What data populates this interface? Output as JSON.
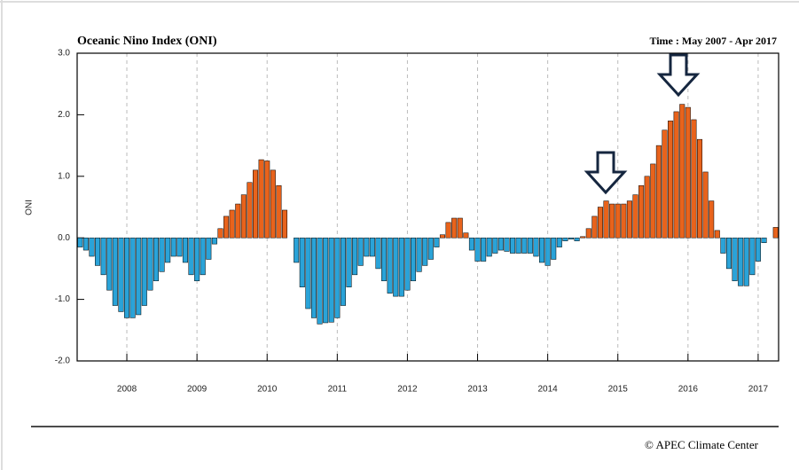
{
  "chart_data": {
    "type": "bar",
    "title": "Oceanic Nino Index (ONI)",
    "subtitle": "Time : May 2007 - Apr 2017",
    "y_label": "ONI",
    "footer": "© APEC Climate Center",
    "categories": [
      null,
      null,
      null,
      null,
      null,
      null,
      null,
      null,
      "2008",
      null,
      null,
      null,
      null,
      null,
      null,
      null,
      null,
      null,
      null,
      null,
      "2009",
      null,
      null,
      null,
      null,
      null,
      null,
      null,
      null,
      null,
      null,
      null,
      "2010",
      null,
      null,
      null,
      null,
      null,
      null,
      null,
      null,
      null,
      null,
      null,
      "2011",
      null,
      null,
      null,
      null,
      null,
      null,
      null,
      null,
      null,
      null,
      null,
      "2012",
      null,
      null,
      null,
      null,
      null,
      null,
      null,
      null,
      null,
      null,
      null,
      "2013",
      null,
      null,
      null,
      null,
      null,
      null,
      null,
      null,
      null,
      null,
      null,
      "2014",
      null,
      null,
      null,
      null,
      null,
      null,
      null,
      null,
      null,
      null,
      null,
      "2015",
      null,
      null,
      null,
      null,
      null,
      null,
      null,
      null,
      null,
      null,
      null,
      "2016",
      null,
      null,
      null,
      null,
      null,
      null,
      null,
      null,
      null,
      null,
      null,
      "2017",
      null,
      null,
      null
    ],
    "values": [
      -0.15,
      -0.2,
      -0.3,
      -0.45,
      -0.6,
      -0.85,
      -1.1,
      -1.2,
      -1.3,
      -1.3,
      -1.25,
      -1.1,
      -0.85,
      -0.7,
      -0.55,
      -0.4,
      -0.3,
      -0.3,
      -0.4,
      -0.6,
      -0.7,
      -0.6,
      -0.35,
      -0.1,
      0.15,
      0.35,
      0.45,
      0.55,
      0.7,
      0.9,
      1.1,
      1.27,
      1.25,
      1.1,
      0.85,
      0.45,
      0.0,
      -0.4,
      -0.8,
      -1.15,
      -1.3,
      -1.4,
      -1.38,
      -1.37,
      -1.3,
      -1.1,
      -0.8,
      -0.6,
      -0.45,
      -0.3,
      -0.3,
      -0.5,
      -0.7,
      -0.9,
      -0.95,
      -0.95,
      -0.85,
      -0.7,
      -0.55,
      -0.45,
      -0.35,
      -0.15,
      0.05,
      0.25,
      0.32,
      0.32,
      0.08,
      -0.2,
      -0.38,
      -0.38,
      -0.3,
      -0.25,
      -0.2,
      -0.22,
      -0.25,
      -0.25,
      -0.25,
      -0.25,
      -0.3,
      -0.4,
      -0.45,
      -0.35,
      -0.15,
      -0.05,
      -0.02,
      -0.05,
      0.02,
      0.15,
      0.35,
      0.5,
      0.6,
      0.55,
      0.55,
      0.55,
      0.6,
      0.7,
      0.85,
      1.0,
      1.2,
      1.5,
      1.75,
      1.9,
      2.05,
      2.17,
      2.12,
      1.92,
      1.6,
      1.07,
      0.6,
      0.12,
      -0.25,
      -0.5,
      -0.7,
      -0.78,
      -0.78,
      -0.6,
      -0.38,
      -0.08,
      0.0,
      0.17
    ],
    "colors": {
      "positive": "#e8631c",
      "negative": "#2aa3d8"
    },
    "ylim": [
      -2,
      3
    ],
    "yticks": [
      {
        "value": -2,
        "label": "-2.0"
      },
      {
        "value": -1,
        "label": "-1.0"
      },
      {
        "value": 0,
        "label": "0.0"
      },
      {
        "value": 1,
        "label": "1.0"
      },
      {
        "value": 2,
        "label": "2.0"
      },
      {
        "value": 3,
        "label": "3.0"
      }
    ],
    "grid": true
  }
}
